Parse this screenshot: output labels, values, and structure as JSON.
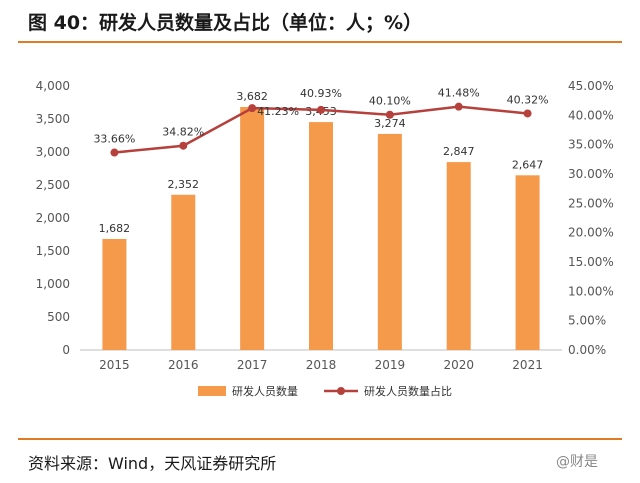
{
  "header": {
    "title": "图 40：研发人员数量及占比（单位：人；%）"
  },
  "footer": {
    "source": "资料来源：Wind，天风证券研究所",
    "watermark": "@财是"
  },
  "colors": {
    "bar": "#f5994b",
    "line": "#b5403c",
    "accent": "#e07b25",
    "axis": "#bfbfbf"
  },
  "chart_data": {
    "type": "bar+line",
    "categories": [
      "2015",
      "2016",
      "2017",
      "2018",
      "2019",
      "2020",
      "2021"
    ],
    "series": [
      {
        "name": "研发人员数量",
        "type": "bar",
        "axis": "left",
        "values": [
          1682,
          2352,
          3682,
          3453,
          3274,
          2847,
          2647
        ],
        "labels": [
          "1,682",
          "2,352",
          "3,682",
          "3,453",
          "3,274",
          "2,847",
          "2,647"
        ]
      },
      {
        "name": "研发人员数量占比",
        "type": "line",
        "axis": "right",
        "values": [
          33.66,
          34.82,
          41.23,
          40.93,
          40.1,
          41.48,
          40.32
        ],
        "labels": [
          "33.66%",
          "34.82%",
          "41.23%",
          "40.93%",
          "40.10%",
          "41.48%",
          "40.32%"
        ]
      }
    ],
    "y_left": {
      "range": [
        0,
        4000
      ],
      "ticks": [
        0,
        500,
        1000,
        1500,
        2000,
        2500,
        3000,
        3500,
        4000
      ],
      "tick_labels": [
        "0",
        "500",
        "1,000",
        "1,500",
        "2,000",
        "2,500",
        "3,000",
        "3,500",
        "4,000"
      ]
    },
    "y_right": {
      "range": [
        0,
        45
      ],
      "ticks": [
        0,
        5,
        10,
        15,
        20,
        25,
        30,
        35,
        40,
        45
      ],
      "tick_labels": [
        "0.00%",
        "5.00%",
        "10.00%",
        "15.00%",
        "20.00%",
        "25.00%",
        "30.00%",
        "35.00%",
        "40.00%",
        "45.00%"
      ]
    },
    "legend": {
      "position": "bottom",
      "items": [
        "研发人员数量",
        "研发人员数量占比"
      ]
    },
    "grid": false
  }
}
